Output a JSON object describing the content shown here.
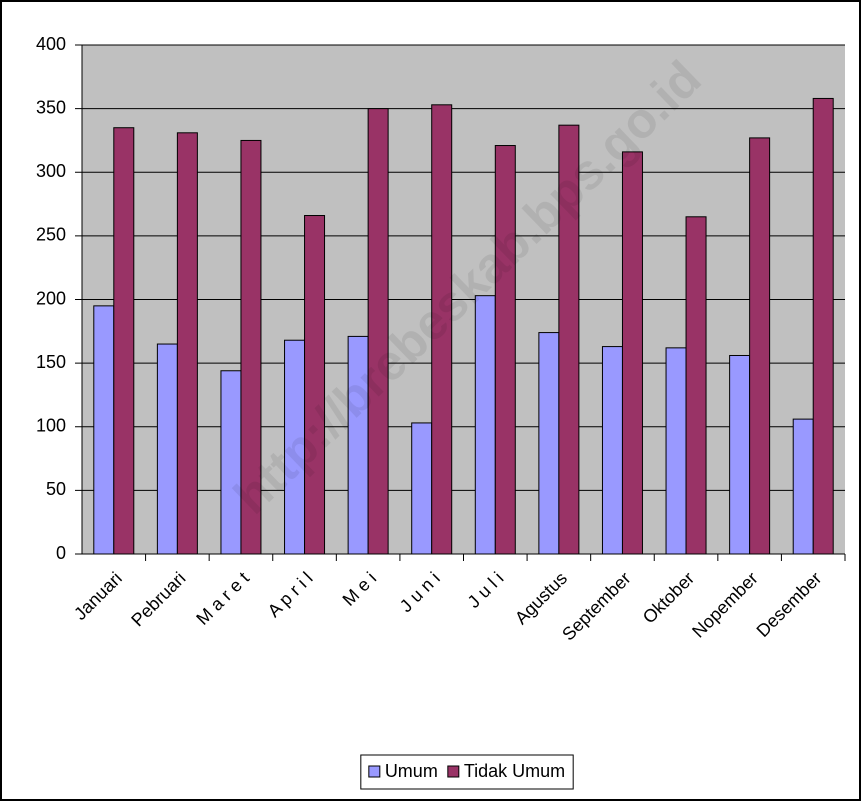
{
  "chart_data": {
    "type": "bar",
    "watermark": "http://brebeskab.bps.go.id",
    "categories": [
      "Januari",
      "Pebruari",
      "M a r e t",
      "A p r i l",
      "M e i",
      "J u n i",
      "J u l i",
      "Agustus",
      "September",
      "Oktober",
      "Nopember",
      "Desember"
    ],
    "series": [
      {
        "name": "Umum",
        "color": "#9999ff",
        "values": [
          195,
          165,
          144,
          168,
          171,
          103,
          203,
          174,
          163,
          162,
          156,
          106
        ]
      },
      {
        "name": "Tidak Umum",
        "color": "#993366",
        "values": [
          335,
          331,
          325,
          266,
          350,
          353,
          321,
          337,
          316,
          265,
          327,
          358
        ]
      }
    ],
    "ylim": [
      0,
      400
    ],
    "yticks": [
      0,
      50,
      100,
      150,
      200,
      250,
      300,
      350,
      400
    ],
    "grid": true,
    "legend": "bottom"
  }
}
